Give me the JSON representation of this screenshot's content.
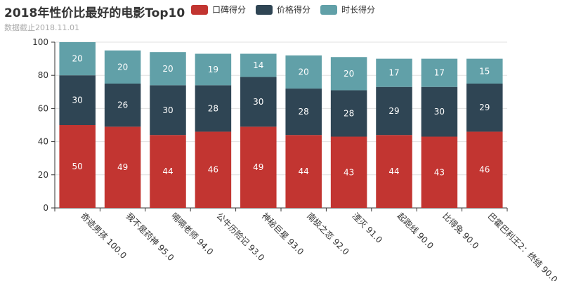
{
  "title": "2018年性价比最好的电影Top10",
  "subtitle": "数据截止2018.11.01",
  "colors": {
    "口碑": "#c23531",
    "价格": "#2f4554",
    "时长": "#61a0a8",
    "axis": "#333333",
    "grid": "#e0e0e0",
    "label": "#ffffff"
  },
  "chart_data": {
    "type": "bar",
    "stacked": true,
    "categories": [
      "奇迹男孩 100.0",
      "我不是药神 95.0",
      "嗝嗝老师 94.0",
      "公牛历险记 93.0",
      "神秘巨星 93.0",
      "南极之恋 92.0",
      "湮灭 91.0",
      "起跑线 90.0",
      "比得兔 90.0",
      "巴霍巴利王2：终结 90.0"
    ],
    "series": [
      {
        "name": "口碑得分",
        "values": [
          50,
          49,
          44,
          46,
          49,
          44,
          43,
          44,
          43,
          46
        ]
      },
      {
        "name": "价格得分",
        "values": [
          30,
          26,
          30,
          28,
          30,
          28,
          28,
          29,
          30,
          29
        ]
      },
      {
        "name": "时长得分",
        "values": [
          20,
          20,
          20,
          19,
          14,
          20,
          20,
          17,
          17,
          15
        ]
      }
    ],
    "ylim": [
      0,
      100
    ],
    "yticks": [
      0,
      20,
      40,
      60,
      80,
      100
    ],
    "grid": true,
    "legend_position": "top",
    "title": "2018年性价比最好的电影Top10",
    "subtitle": "数据截止2018.11.01"
  }
}
